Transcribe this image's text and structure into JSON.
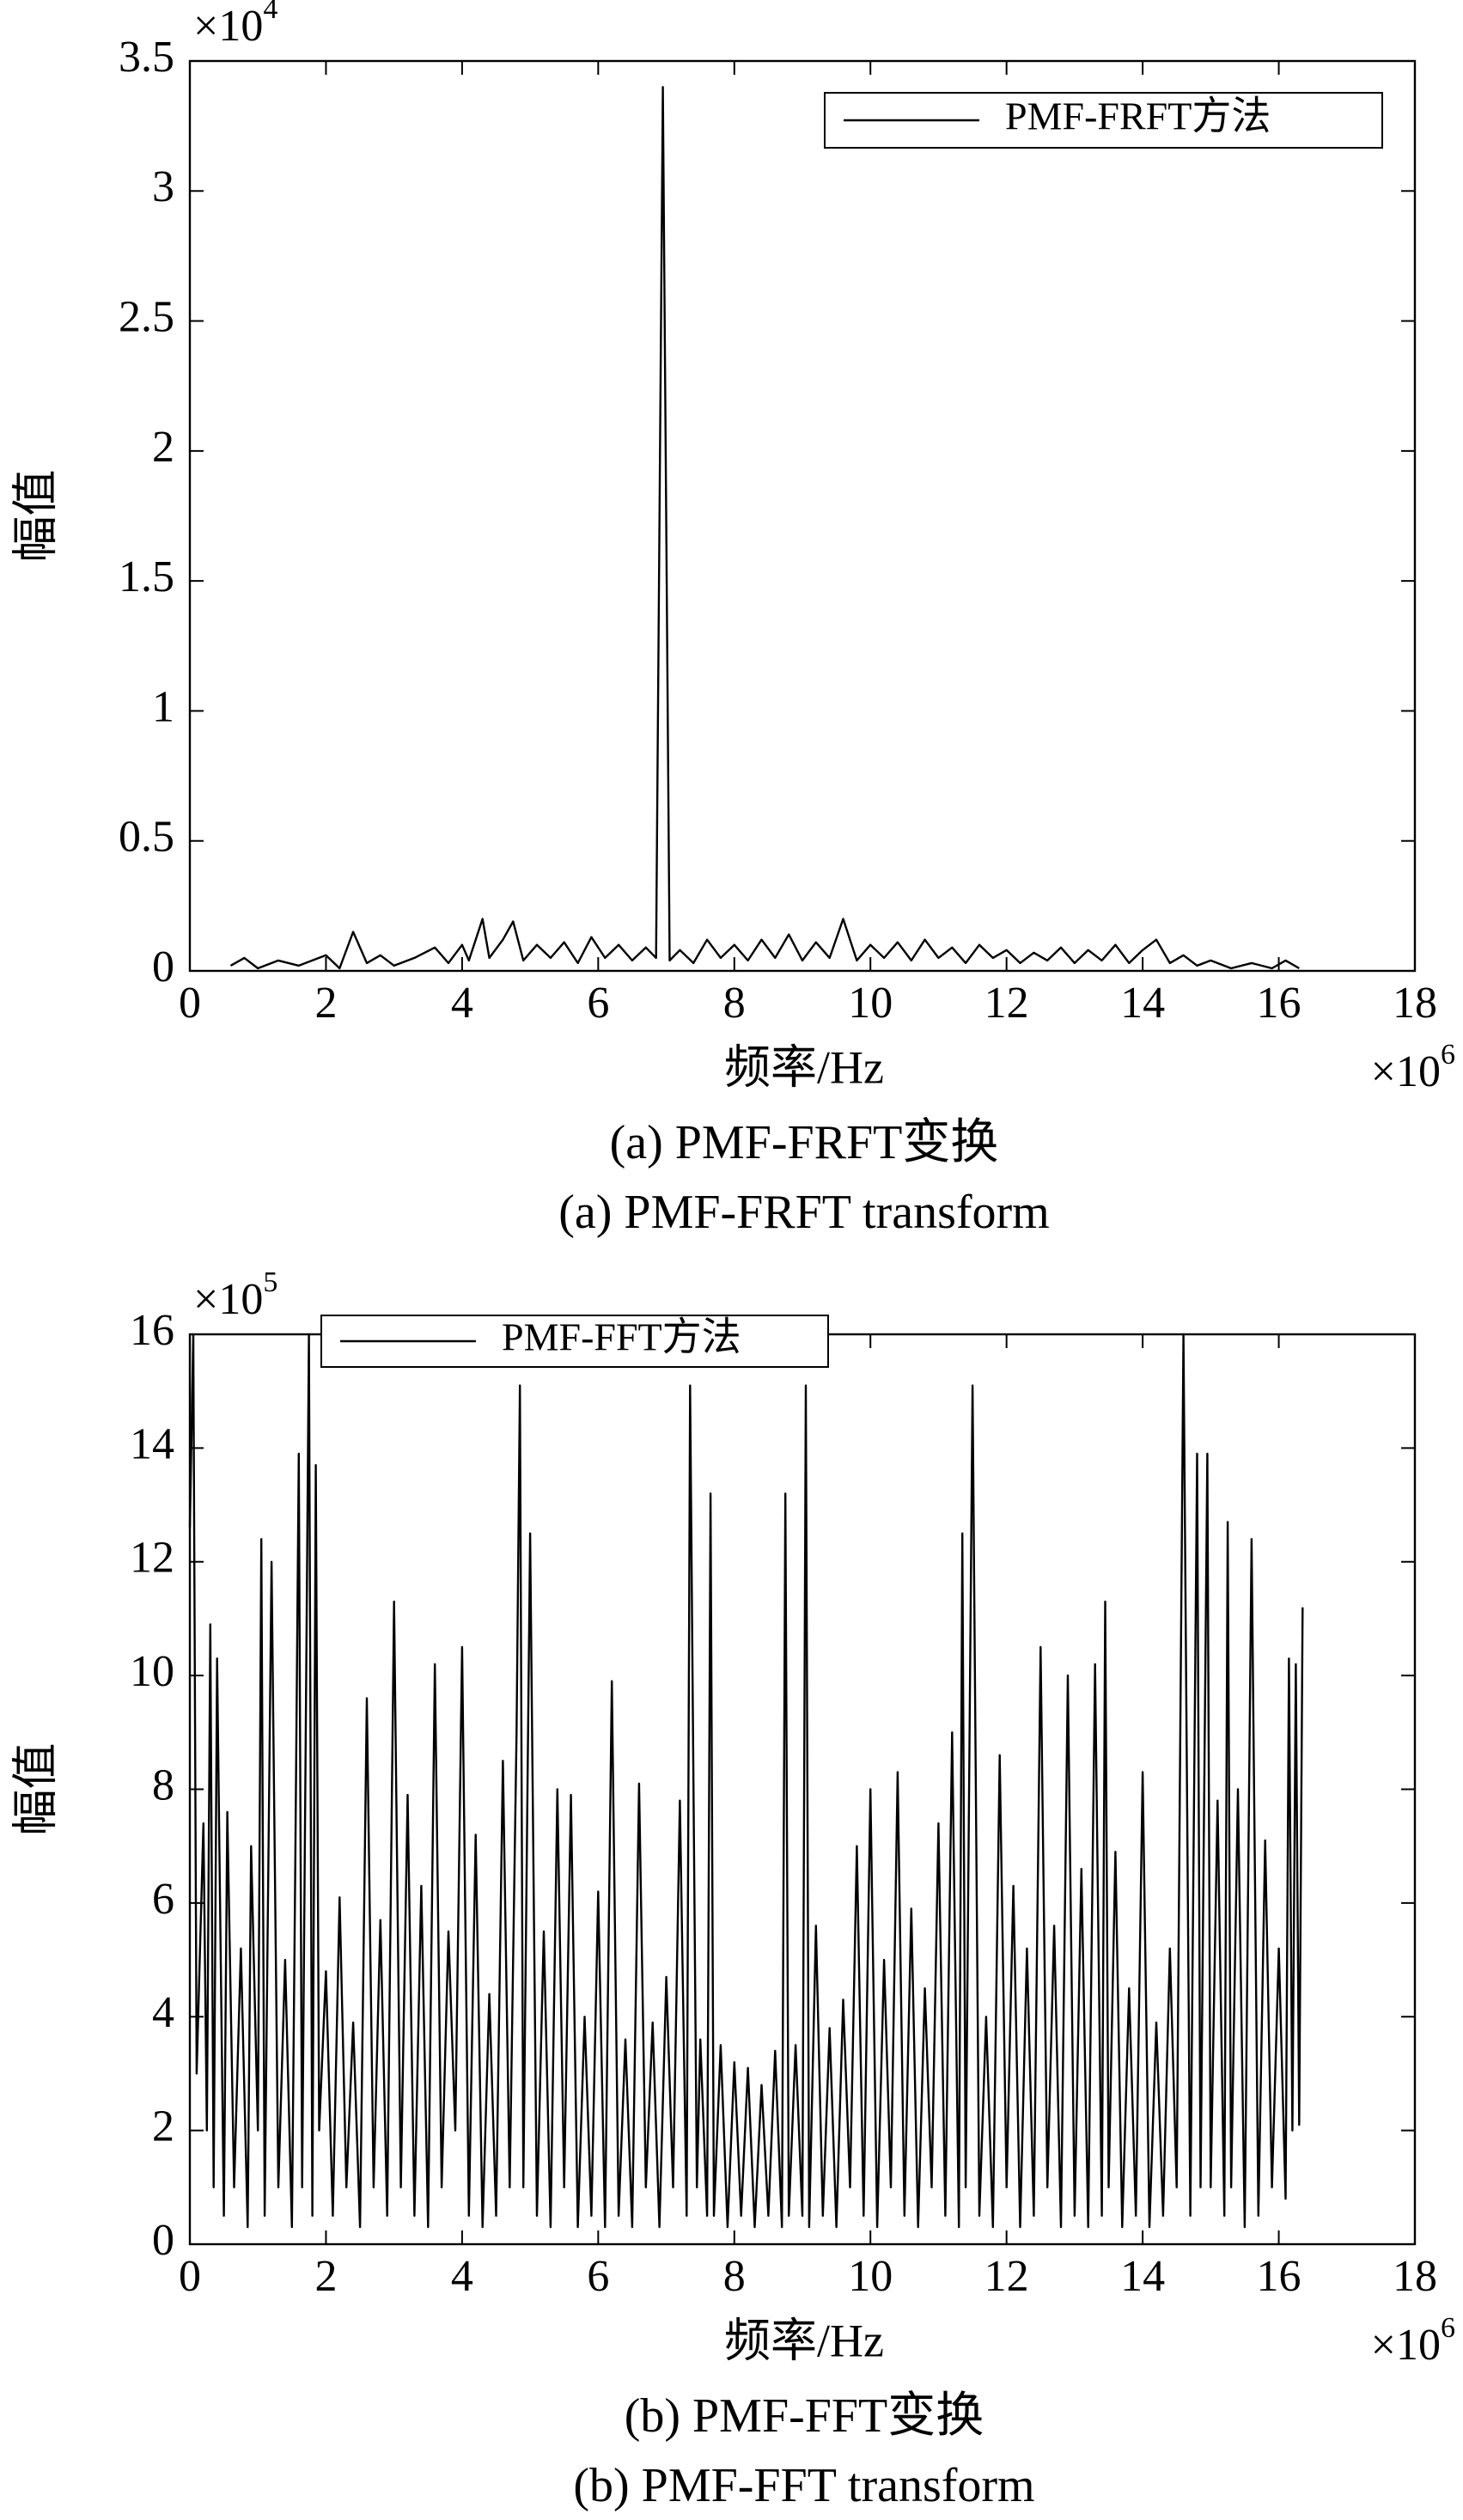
{
  "chart_data": [
    {
      "type": "line",
      "caption_zh": "(a) PMF-FRFT变换",
      "caption_en": "(a) PMF-FRFT transform",
      "xlabel": "频率/Hz",
      "ylabel": "幅值",
      "x_multiplier": {
        "base": "×10",
        "exp": "6"
      },
      "y_multiplier": {
        "base": "×10",
        "exp": "4"
      },
      "xlim": [
        0,
        18
      ],
      "xticks": [
        0,
        2,
        4,
        6,
        8,
        10,
        12,
        14,
        16,
        18
      ],
      "ylim": [
        0,
        3.5
      ],
      "yticks": [
        0,
        0.5,
        1,
        1.5,
        2,
        2.5,
        3,
        3.5
      ],
      "legend": "upper right",
      "x": [
        0.6,
        0.8,
        1.0,
        1.3,
        1.6,
        2.0,
        2.2,
        2.4,
        2.6,
        2.8,
        3.0,
        3.3,
        3.6,
        3.8,
        4.0,
        4.1,
        4.3,
        4.4,
        4.6,
        4.75,
        4.9,
        5.1,
        5.3,
        5.5,
        5.7,
        5.9,
        6.1,
        6.3,
        6.5,
        6.7,
        6.85,
        6.95,
        7.05,
        7.2,
        7.4,
        7.6,
        7.8,
        8.0,
        8.2,
        8.4,
        8.6,
        8.8,
        9.0,
        9.2,
        9.4,
        9.6,
        9.8,
        10.0,
        10.2,
        10.4,
        10.6,
        10.8,
        11.0,
        11.2,
        11.4,
        11.6,
        11.8,
        12.0,
        12.2,
        12.4,
        12.6,
        12.8,
        13.0,
        13.2,
        13.4,
        13.6,
        13.8,
        14.0,
        14.2,
        14.4,
        14.6,
        14.8,
        15.0,
        15.3,
        15.6,
        15.9,
        16.1,
        16.3
      ],
      "series": [
        {
          "name": "PMF-FRFT方法",
          "color": "#000000",
          "values": [
            0.02,
            0.05,
            0.01,
            0.04,
            0.02,
            0.06,
            0.01,
            0.15,
            0.03,
            0.06,
            0.02,
            0.05,
            0.09,
            0.03,
            0.1,
            0.04,
            0.2,
            0.05,
            0.12,
            0.19,
            0.04,
            0.1,
            0.05,
            0.11,
            0.03,
            0.13,
            0.05,
            0.1,
            0.04,
            0.09,
            0.05,
            3.4,
            0.04,
            0.08,
            0.03,
            0.12,
            0.05,
            0.1,
            0.04,
            0.12,
            0.05,
            0.14,
            0.04,
            0.11,
            0.05,
            0.2,
            0.04,
            0.1,
            0.05,
            0.11,
            0.04,
            0.12,
            0.05,
            0.09,
            0.03,
            0.1,
            0.05,
            0.08,
            0.03,
            0.07,
            0.04,
            0.09,
            0.03,
            0.08,
            0.04,
            0.1,
            0.03,
            0.08,
            0.12,
            0.03,
            0.06,
            0.02,
            0.04,
            0.01,
            0.03,
            0.01,
            0.04,
            0.01
          ]
        }
      ]
    },
    {
      "type": "line",
      "caption_zh": "(b) PMF-FFT变换",
      "caption_en": "(b) PMF-FFT transform",
      "xlabel": "频率/Hz",
      "ylabel": "幅值",
      "x_multiplier": {
        "base": "×10",
        "exp": "6"
      },
      "y_multiplier": {
        "base": "×10",
        "exp": "5"
      },
      "xlim": [
        0,
        18
      ],
      "xticks": [
        0,
        2,
        4,
        6,
        8,
        10,
        12,
        14,
        16,
        18
      ],
      "ylim": [
        0,
        16
      ],
      "yticks": [
        0,
        2,
        4,
        6,
        8,
        10,
        12,
        14,
        16
      ],
      "legend": "upper left",
      "x": [
        0.0,
        0.05,
        0.1,
        0.2,
        0.25,
        0.3,
        0.35,
        0.4,
        0.5,
        0.55,
        0.65,
        0.75,
        0.85,
        0.9,
        1.0,
        1.05,
        1.1,
        1.2,
        1.3,
        1.4,
        1.5,
        1.55,
        1.6,
        1.65,
        1.75,
        1.8,
        1.85,
        1.9,
        2.0,
        2.1,
        2.2,
        2.3,
        2.4,
        2.5,
        2.6,
        2.7,
        2.8,
        2.9,
        3.0,
        3.1,
        3.2,
        3.3,
        3.4,
        3.5,
        3.6,
        3.7,
        3.8,
        3.9,
        4.0,
        4.1,
        4.2,
        4.3,
        4.4,
        4.5,
        4.6,
        4.7,
        4.8,
        4.85,
        4.9,
        5.0,
        5.1,
        5.2,
        5.3,
        5.4,
        5.5,
        5.6,
        5.7,
        5.8,
        5.9,
        6.0,
        6.1,
        6.2,
        6.3,
        6.4,
        6.5,
        6.6,
        6.7,
        6.8,
        6.9,
        7.0,
        7.1,
        7.2,
        7.3,
        7.35,
        7.45,
        7.5,
        7.6,
        7.65,
        7.7,
        7.8,
        7.9,
        8.0,
        8.1,
        8.2,
        8.3,
        8.4,
        8.5,
        8.6,
        8.7,
        8.75,
        8.8,
        8.9,
        9.0,
        9.05,
        9.1,
        9.2,
        9.3,
        9.4,
        9.5,
        9.6,
        9.7,
        9.8,
        9.9,
        10.0,
        10.1,
        10.2,
        10.3,
        10.4,
        10.5,
        10.6,
        10.7,
        10.8,
        10.9,
        11.0,
        11.1,
        11.2,
        11.3,
        11.35,
        11.4,
        11.5,
        11.6,
        11.7,
        11.8,
        11.9,
        12.0,
        12.1,
        12.2,
        12.3,
        12.4,
        12.5,
        12.6,
        12.7,
        12.8,
        12.9,
        13.0,
        13.1,
        13.2,
        13.3,
        13.4,
        13.45,
        13.5,
        13.6,
        13.7,
        13.8,
        13.9,
        14.0,
        14.1,
        14.2,
        14.3,
        14.4,
        14.5,
        14.6,
        14.7,
        14.8,
        14.85,
        14.95,
        15.0,
        15.1,
        15.2,
        15.25,
        15.3,
        15.4,
        15.5,
        15.6,
        15.7,
        15.8,
        15.9,
        16.0,
        16.1,
        16.15,
        16.2,
        16.25,
        16.3,
        16.35
      ],
      "series": [
        {
          "name": "PMF-FFT方法",
          "color": "#000000",
          "values": [
            12.6,
            16,
            3,
            7.4,
            2,
            10.9,
            1,
            10.3,
            0.5,
            7.6,
            1,
            5.2,
            0.3,
            7,
            2,
            12.4,
            0.5,
            12,
            1,
            5,
            0.3,
            6.8,
            13.9,
            1,
            16,
            0.5,
            13.7,
            2,
            4.8,
            0.5,
            6.1,
            1,
            3.9,
            0.3,
            9.6,
            1,
            5.7,
            0.5,
            11.3,
            1,
            7.9,
            0.5,
            6.3,
            0.3,
            10.2,
            1,
            5.5,
            2,
            10.5,
            0.5,
            7.2,
            0.3,
            4.4,
            0.5,
            8.5,
            1,
            9,
            15.1,
            1,
            12.5,
            0.5,
            5.5,
            0.3,
            8,
            1,
            7.9,
            0.3,
            4,
            0.5,
            6.2,
            0.3,
            9.9,
            0.5,
            3.6,
            0.3,
            8.1,
            1,
            3.9,
            0.3,
            4.7,
            1,
            7.8,
            0.5,
            15.1,
            1,
            3.6,
            0.5,
            13.2,
            0.5,
            3.5,
            0.3,
            3.2,
            0.5,
            3.1,
            0.3,
            2.8,
            0.5,
            3.4,
            0.3,
            13.2,
            0.5,
            3.5,
            0.5,
            15.1,
            0.3,
            5.6,
            0.5,
            3.8,
            0.3,
            4.3,
            1,
            7,
            0.5,
            8,
            0.3,
            5,
            1,
            8.3,
            0.5,
            5.9,
            0.3,
            4.5,
            1,
            7.4,
            0.5,
            9,
            0.3,
            12.5,
            1,
            15.1,
            0.5,
            4,
            0.3,
            8.6,
            1,
            6.3,
            0.3,
            5.2,
            0.5,
            10.5,
            1,
            5.6,
            0.3,
            10,
            0.5,
            6.6,
            0.3,
            10.2,
            0.5,
            11.3,
            1,
            6.9,
            0.3,
            4.5,
            0.5,
            8.3,
            0.3,
            3.9,
            0.5,
            5.2,
            1,
            16,
            0.5,
            13.9,
            1,
            13.9,
            1,
            7.8,
            0.5,
            12.7,
            1,
            8,
            0.3,
            12.4,
            0.5,
            7.1,
            1,
            5.2,
            0.8,
            10.3,
            2,
            10.2,
            2.1,
            11.2
          ]
        }
      ]
    }
  ]
}
